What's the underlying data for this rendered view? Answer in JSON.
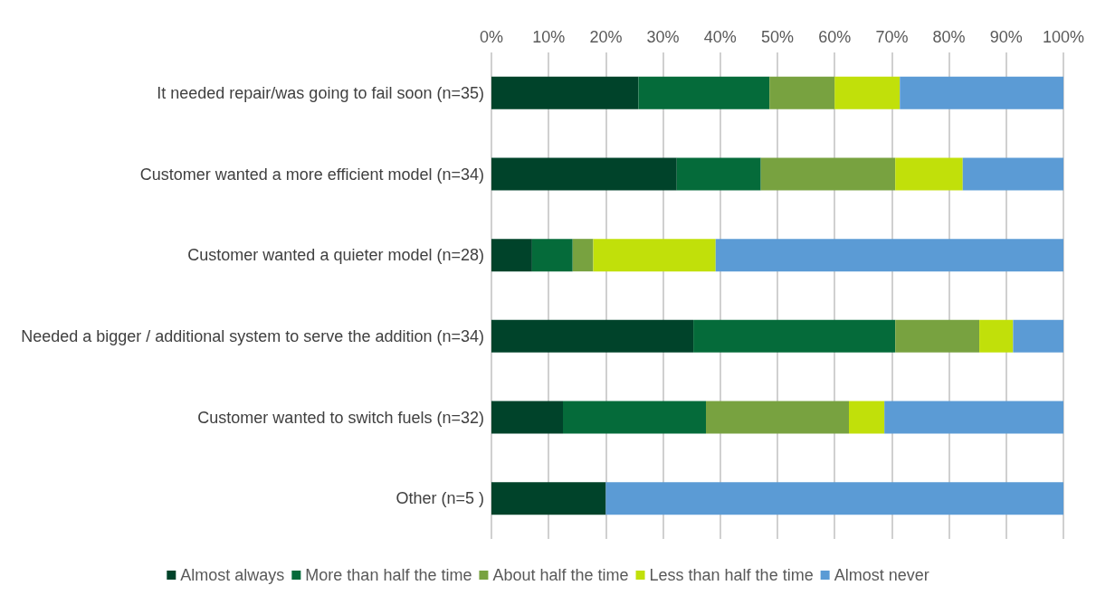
{
  "chart_data": {
    "type": "bar",
    "orientation": "horizontal",
    "stacked": true,
    "categories": [
      "It needed repair/was going to fail soon (n=35)",
      "Customer wanted a more efficient model (n=34)",
      "Customer wanted a quieter model (n=28)",
      "Needed a bigger / additional system to serve the addition (n=34)",
      "Customer wanted to switch fuels (n=32)",
      "Other (n=5 )"
    ],
    "series": [
      {
        "name": "Almost always",
        "color": "#00432a",
        "values": [
          25.7,
          32.4,
          7.1,
          35.3,
          12.5,
          20
        ]
      },
      {
        "name": "More than half the time",
        "color": "#056b3a",
        "values": [
          22.9,
          14.7,
          7.1,
          35.3,
          25,
          0
        ]
      },
      {
        "name": "About half the time",
        "color": "#78a240",
        "values": [
          11.4,
          23.5,
          3.6,
          14.7,
          25,
          0
        ]
      },
      {
        "name": "Less than half the time",
        "color": "#c1e00a",
        "values": [
          11.4,
          11.8,
          21.4,
          5.9,
          6.2,
          0
        ]
      },
      {
        "name": "Almost never",
        "color": "#5b9bd5",
        "values": [
          28.6,
          17.6,
          60.8,
          8.8,
          31.3,
          80
        ]
      }
    ],
    "xlim": [
      0,
      100
    ],
    "xticks": [
      {
        "value": 0,
        "label": "0%"
      },
      {
        "value": 10,
        "label": "10%"
      },
      {
        "value": 20,
        "label": "20%"
      },
      {
        "value": 30,
        "label": "30%"
      },
      {
        "value": 40,
        "label": "40%"
      },
      {
        "value": 50,
        "label": "50%"
      },
      {
        "value": 60,
        "label": "60%"
      },
      {
        "value": 70,
        "label": "70%"
      },
      {
        "value": 80,
        "label": "80%"
      },
      {
        "value": 90,
        "label": "90%"
      },
      {
        "value": 100,
        "label": "100%"
      }
    ],
    "grid": "x",
    "legend": "bottom"
  }
}
